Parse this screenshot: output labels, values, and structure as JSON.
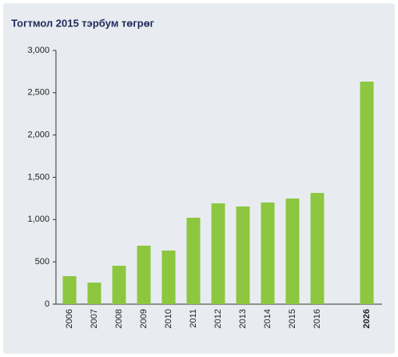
{
  "chart_data": {
    "type": "bar",
    "title": "Тогтмол 2015 тэрбум төгрөг",
    "categories": [
      "2006",
      "2007",
      "2008",
      "2009",
      "2010",
      "2011",
      "2012",
      "2013",
      "2014",
      "2015",
      "2016",
      null,
      "2026"
    ],
    "values": [
      331,
      255,
      454,
      691,
      634,
      1022,
      1192,
      1155,
      1202,
      1249,
      1315,
      null,
      2631
    ],
    "color": "#8dc63f",
    "ylim": [
      0,
      3000
    ],
    "yticks": [
      0,
      500,
      {
        "value": 1000,
        "label": "1,000"
      },
      {
        "value": 1500,
        "label": "1,500"
      },
      {
        "value": 2000,
        "label": "2,000"
      },
      {
        "value": 2500,
        "label": "2,500"
      },
      {
        "value": 3000,
        "label": "3,000"
      }
    ],
    "grid": false
  }
}
